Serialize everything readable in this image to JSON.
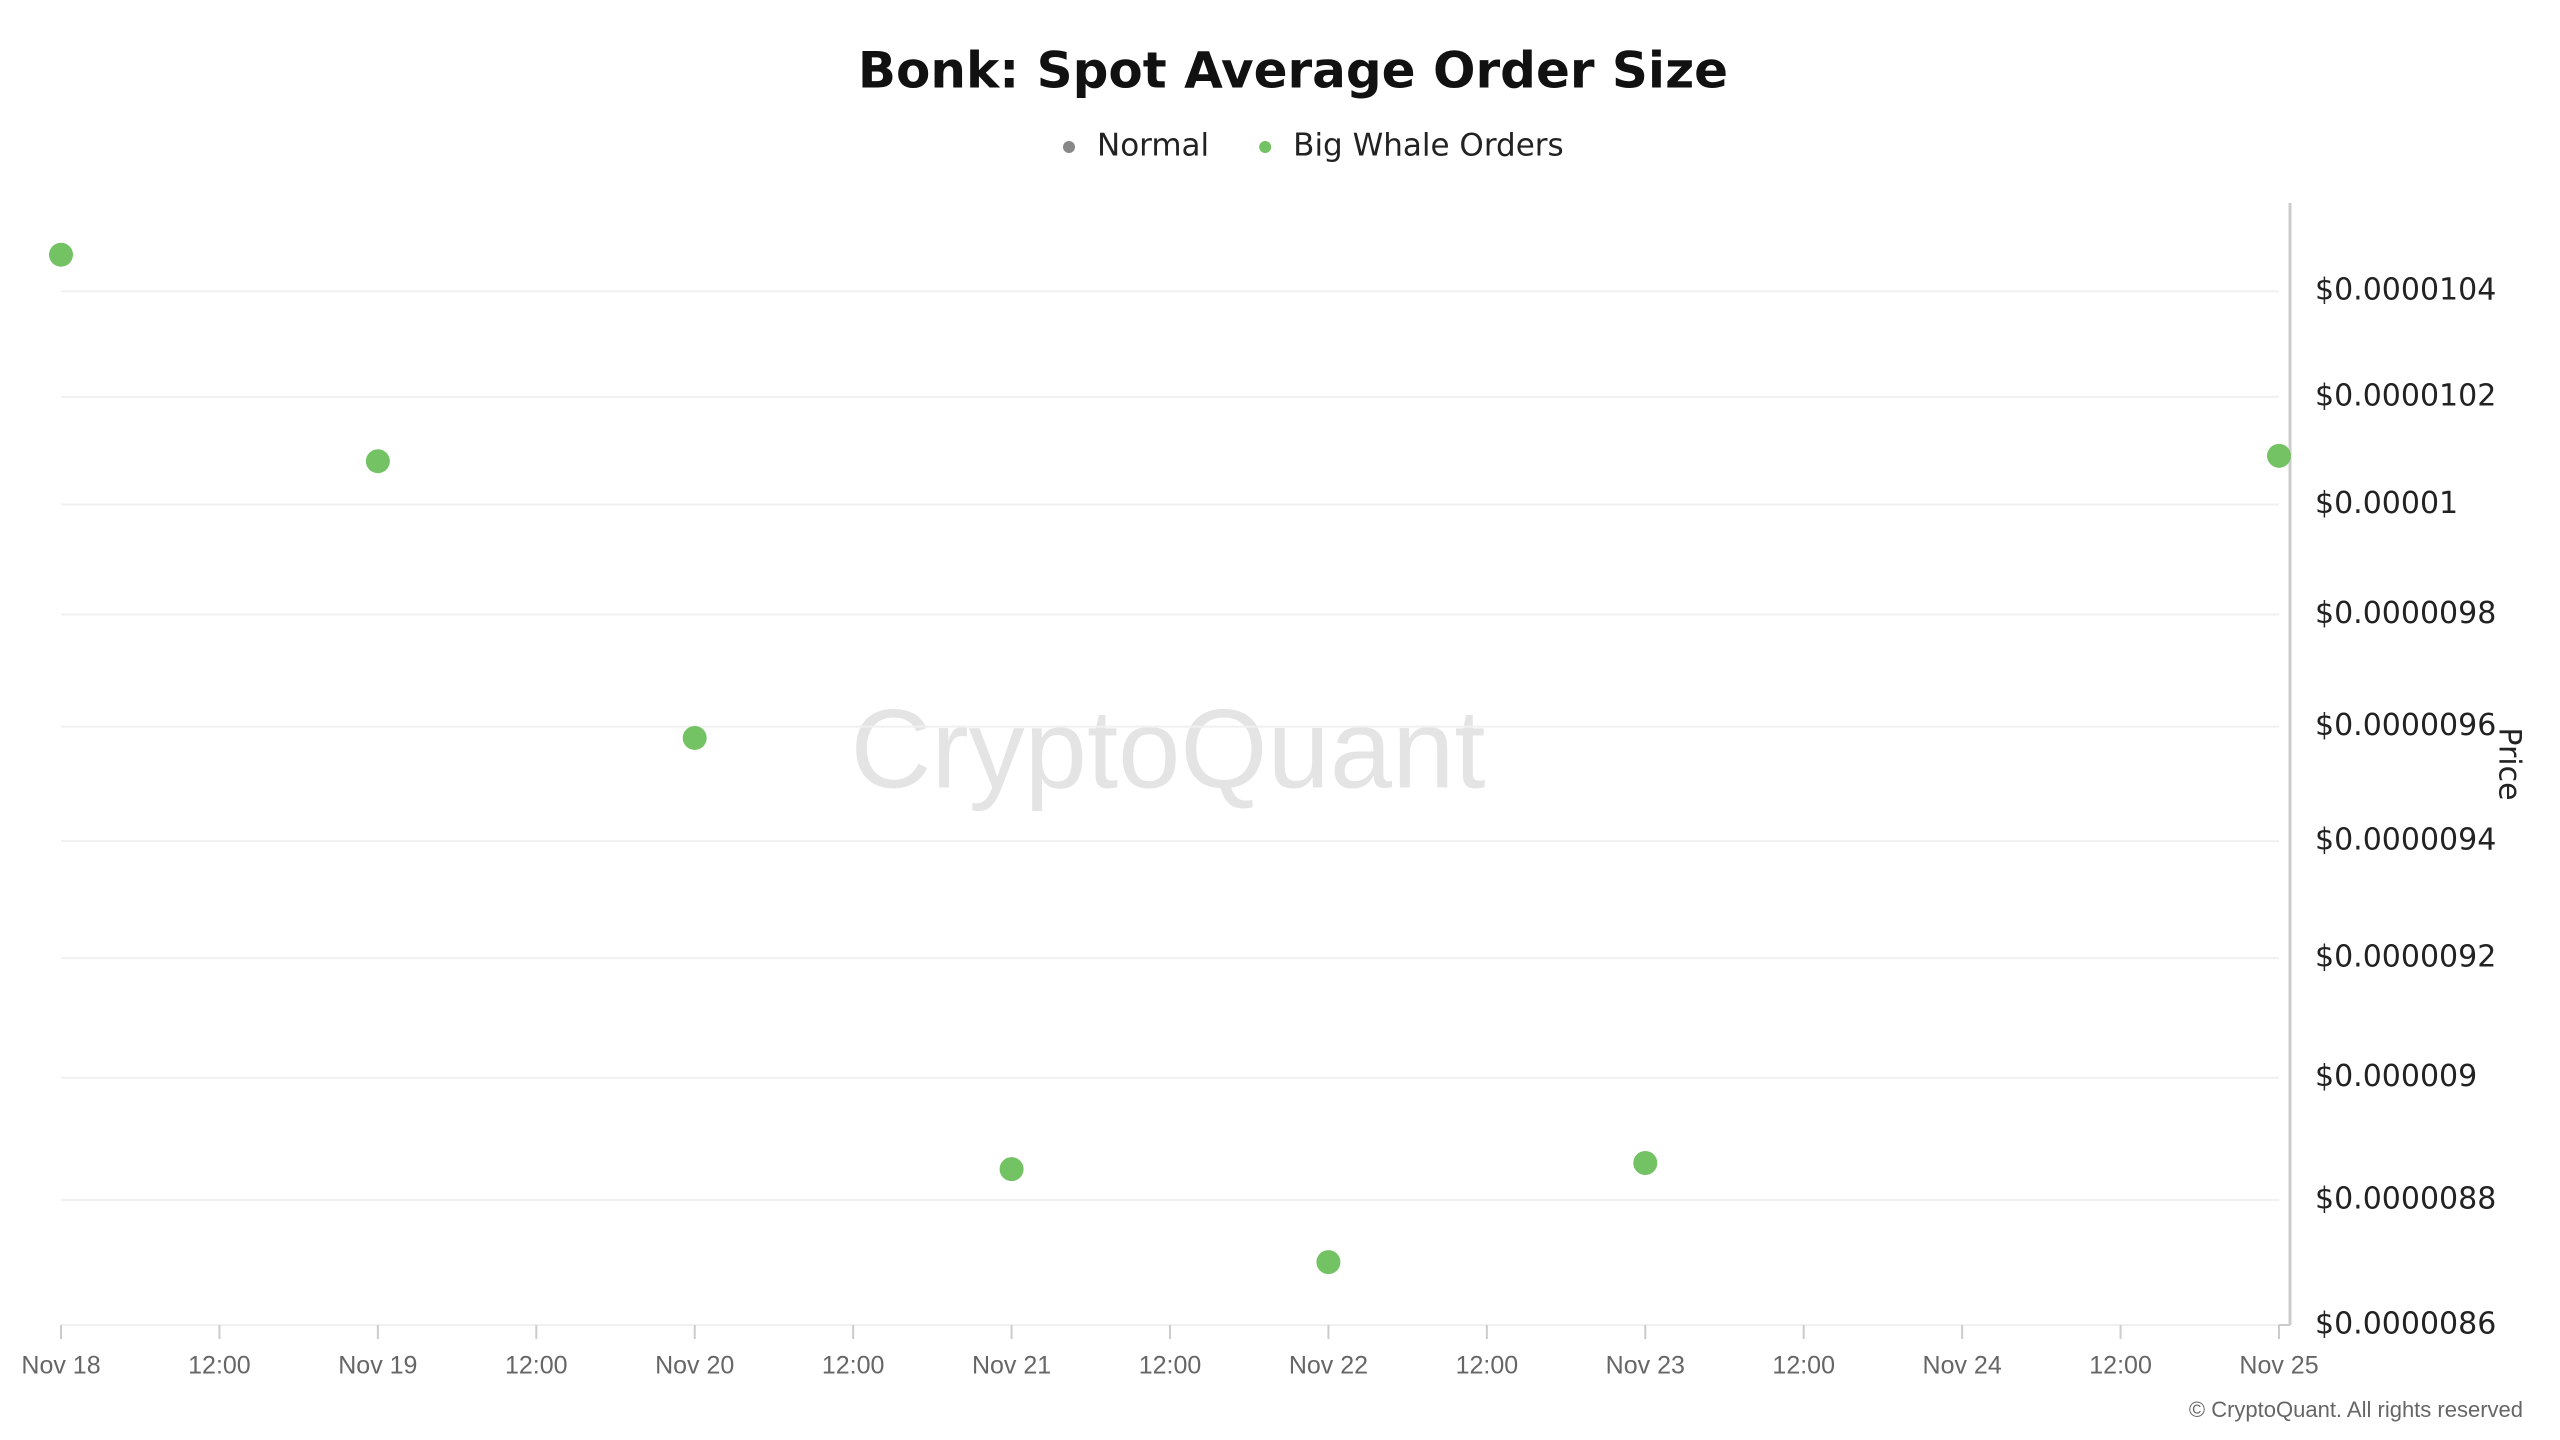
{
  "chart_data": {
    "type": "scatter",
    "title": "Bonk: Spot Average Order Size",
    "categories": [
      "Nov 18",
      "12:00",
      "Nov 19",
      "12:00",
      "Nov 20",
      "12:00",
      "Nov 21",
      "12:00",
      "Nov 22",
      "12:00",
      "Nov 23",
      "12:00",
      "Nov 24",
      "12:00",
      "Nov 25"
    ],
    "series": [
      {
        "name": "Normal",
        "color": "#888888",
        "values": [
          null,
          null,
          null,
          null,
          null,
          null,
          null,
          null,
          null,
          null,
          null,
          null,
          null,
          null,
          null
        ]
      },
      {
        "name": "Big Whale Orders",
        "color": "#73c264",
        "values": [
          1.047e-05,
          null,
          1.008e-05,
          null,
          9.58e-06,
          null,
          8.85e-06,
          null,
          8.7e-06,
          null,
          8.86e-06,
          null,
          null,
          null,
          1.009e-05
        ]
      }
    ],
    "y_label": "Price",
    "ylim": [
      8.6e-06,
      1.057e-05
    ],
    "yticks": [
      {
        "value": 8.6e-06,
        "label": "$0.0000086"
      },
      {
        "value": 8.8e-06,
        "label": "$0.0000088"
      },
      {
        "value": 9e-06,
        "label": "$0.000009"
      },
      {
        "value": 9.2e-06,
        "label": "$0.0000092"
      },
      {
        "value": 9.4e-06,
        "label": "$0.0000094"
      },
      {
        "value": 9.6e-06,
        "label": "$0.0000096"
      },
      {
        "value": 9.8e-06,
        "label": "$0.0000098"
      },
      {
        "value": 1e-05,
        "label": "$0.00001"
      },
      {
        "value": 1.02e-05,
        "label": "$0.0000102"
      },
      {
        "value": 1.04e-05,
        "label": "$0.0000104"
      }
    ],
    "log_scale": true,
    "grid": true,
    "watermark": "CryptoQuant",
    "credit": "© CryptoQuant. All rights reserved"
  }
}
